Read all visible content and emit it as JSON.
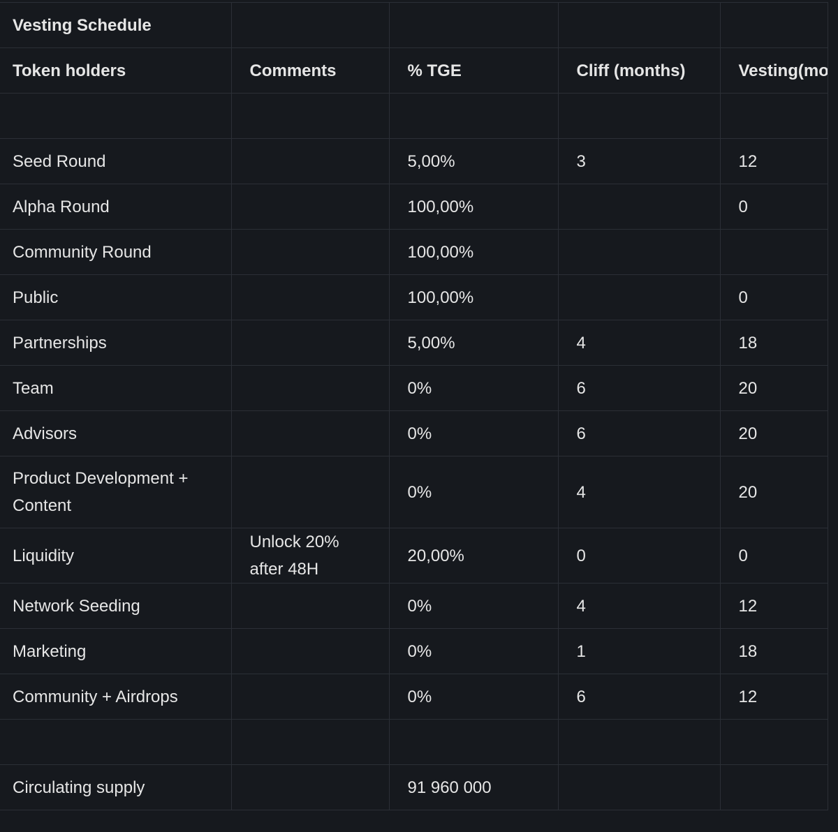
{
  "table": {
    "title": "Vesting Schedule",
    "columns": [
      "Token holders",
      "Comments",
      "% TGE",
      "Cliff (months)",
      "Vesting(mo"
    ],
    "rows": [
      [
        "Seed Round",
        null,
        "5,00%",
        "3",
        "12"
      ],
      [
        "Alpha Round",
        null,
        "100,00%",
        null,
        "0"
      ],
      [
        "Community Round",
        null,
        "100,00%",
        null,
        null
      ],
      [
        "Public",
        null,
        "100,00%",
        null,
        "0"
      ],
      [
        "Partnerships",
        null,
        "5,00%",
        "4",
        "18"
      ],
      [
        "Team",
        null,
        "0%",
        "6",
        "20"
      ],
      [
        "Advisors",
        null,
        "0%",
        "6",
        "20"
      ],
      [
        "Product Development + Content",
        null,
        "0%",
        "4",
        "20"
      ],
      [
        "Liquidity",
        "Unlock 20% after 48H",
        "20,00%",
        "0",
        "0"
      ],
      [
        "Network Seeding",
        null,
        "0%",
        "4",
        "12"
      ],
      [
        "Marketing",
        null,
        "0%",
        "1",
        "18"
      ],
      [
        "Community + Airdrops",
        null,
        "0%",
        "6",
        "12"
      ]
    ],
    "footer": [
      "Circulating supply",
      null,
      "91 960 000",
      null,
      null
    ]
  }
}
